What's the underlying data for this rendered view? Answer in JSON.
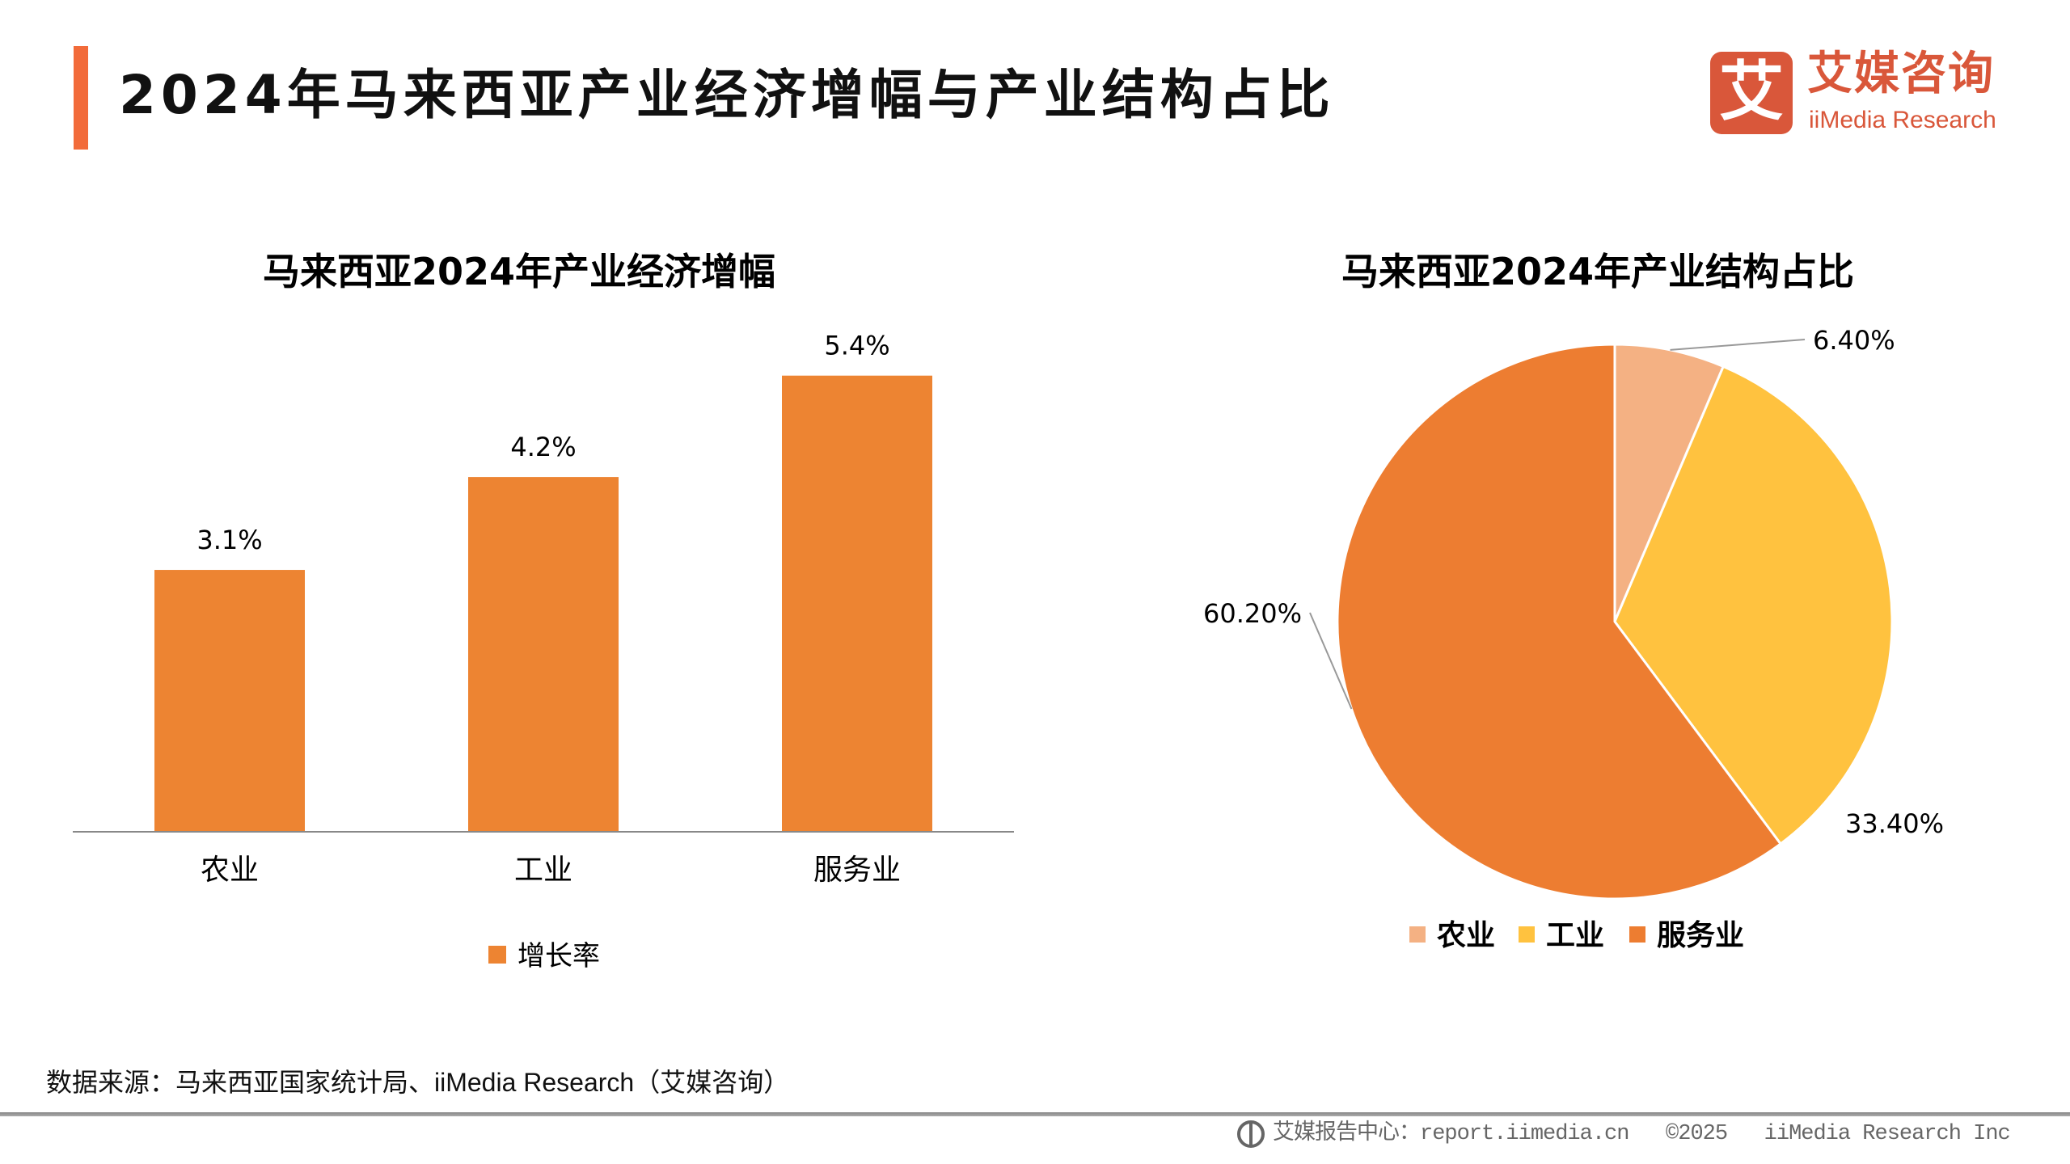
{
  "header": {
    "title": "2024年马来西亚产业经济增幅与产业结构占比",
    "logo_cn": "艾媒咨询",
    "logo_en": "iiMedia Research",
    "logo_mark": "艾"
  },
  "chart_data": [
    {
      "type": "bar",
      "title": "马来西亚2024年产业经济增幅",
      "categories": [
        "农业",
        "工业",
        "服务业"
      ],
      "series": [
        {
          "name": "增长率",
          "values": [
            3.1,
            4.2,
            5.4
          ]
        }
      ],
      "data_labels": [
        "3.1%",
        "4.2%",
        "5.4%"
      ],
      "ylim": [
        0,
        6
      ],
      "grid": false,
      "legend": "bottom",
      "color": "#ED8432"
    },
    {
      "type": "pie",
      "title": "马来西亚2024年产业结构占比",
      "categories": [
        "农业",
        "工业",
        "服务业"
      ],
      "values": [
        6.4,
        33.4,
        60.2
      ],
      "data_labels": [
        "6.40%",
        "33.40%",
        "60.20%"
      ],
      "colors": [
        "#F4B183",
        "#FFC23F",
        "#ED7D31"
      ],
      "legend": "bottom"
    }
  ],
  "source": "数据来源：马来西亚国家统计局、iiMedia Research（艾媒咨询）",
  "footer": {
    "icon": "globe-cursor-icon",
    "text": "艾媒报告中心：report.iimedia.cn   ©2025   iiMedia Research Inc"
  }
}
